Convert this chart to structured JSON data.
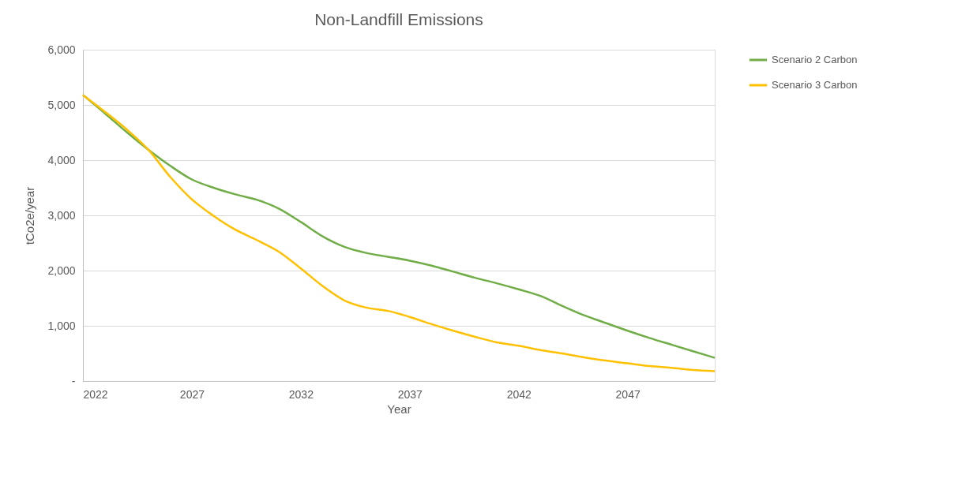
{
  "chart_data": {
    "type": "line",
    "title": "Non-Landfill Emissions",
    "xlabel": "Year",
    "ylabel": "tCo2e/year",
    "x": [
      2022,
      2023,
      2024,
      2025,
      2026,
      2027,
      2028,
      2029,
      2030,
      2031,
      2032,
      2033,
      2034,
      2035,
      2036,
      2037,
      2038,
      2039,
      2040,
      2041,
      2042,
      2043,
      2044,
      2045,
      2046,
      2047,
      2048,
      2049,
      2050,
      2051
    ],
    "series": [
      {
        "name": "Scenario 2 Carbon",
        "color": "#70ad47",
        "values": [
          5180,
          4850,
          4510,
          4190,
          3900,
          3650,
          3500,
          3380,
          3280,
          3120,
          2880,
          2620,
          2430,
          2320,
          2250,
          2180,
          2090,
          1980,
          1870,
          1770,
          1660,
          1540,
          1360,
          1190,
          1050,
          910,
          780,
          660,
          540,
          420
        ]
      },
      {
        "name": "Scenario 3 Carbon",
        "color": "#ffc000",
        "values": [
          5180,
          4880,
          4560,
          4190,
          3700,
          3290,
          2990,
          2740,
          2550,
          2340,
          2040,
          1720,
          1460,
          1330,
          1270,
          1160,
          1030,
          910,
          800,
          700,
          640,
          560,
          500,
          430,
          370,
          320,
          270,
          240,
          200,
          180
        ]
      }
    ],
    "xlim": [
      2022,
      2051
    ],
    "xticks": [
      2022,
      2027,
      2032,
      2037,
      2042,
      2047
    ],
    "ylim": [
      0,
      6000
    ],
    "yticks": [
      {
        "value": 0,
        "label": "-"
      },
      {
        "value": 1000,
        "label": "1,000"
      },
      {
        "value": 2000,
        "label": "2,000"
      },
      {
        "value": 3000,
        "label": "3,000"
      },
      {
        "value": 4000,
        "label": "4,000"
      },
      {
        "value": 5000,
        "label": "5,000"
      },
      {
        "value": 6000,
        "label": "6,000"
      }
    ],
    "grid": "y",
    "legend": "right",
    "marker": "none",
    "line_style": "solid"
  }
}
